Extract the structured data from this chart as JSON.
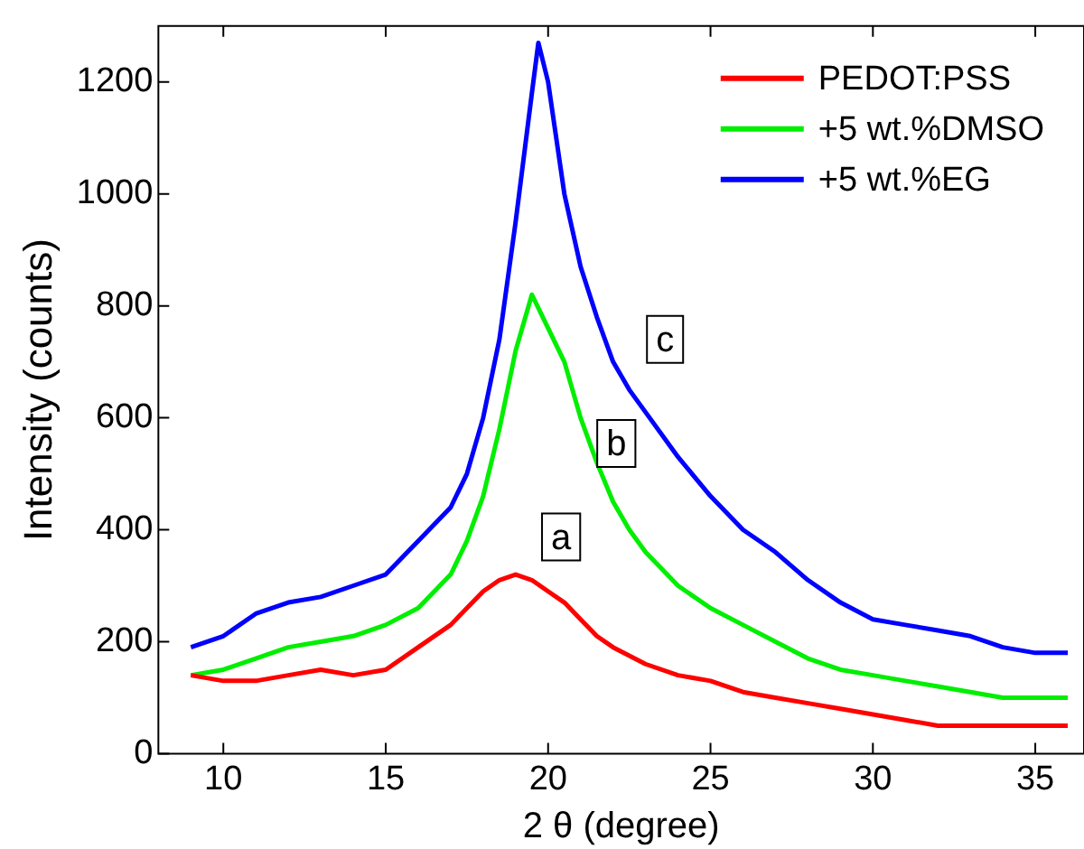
{
  "chart_data": {
    "type": "line",
    "xlabel": "2 θ (degree)",
    "ylabel": "Intensity (counts)",
    "xlim": [
      8,
      36.5
    ],
    "xticks": [
      10,
      15,
      20,
      25,
      30,
      35
    ],
    "ylim": [
      0,
      1300
    ],
    "yticks": [
      0,
      200,
      400,
      600,
      800,
      1000,
      1200
    ],
    "grid": false,
    "legend": "top right",
    "marker": "none",
    "line_style": "solid",
    "series": [
      {
        "name": "PEDOT:PSS",
        "color": "#ff0000",
        "x": [
          9,
          10,
          11,
          12,
          13,
          14,
          15,
          16,
          17,
          17.5,
          18,
          18.5,
          19,
          19.5,
          20,
          20.5,
          21,
          21.5,
          22,
          23,
          24,
          25,
          26,
          27,
          28,
          29,
          30,
          31,
          32,
          33,
          34,
          35,
          36
        ],
        "values": [
          140,
          130,
          130,
          140,
          150,
          140,
          150,
          190,
          230,
          260,
          290,
          310,
          320,
          310,
          290,
          270,
          240,
          210,
          190,
          160,
          140,
          130,
          110,
          100,
          90,
          80,
          70,
          60,
          50,
          50,
          50,
          50,
          50
        ]
      },
      {
        "name": "+5 wt.%DMSO",
        "color": "#00ee00",
        "x": [
          9,
          10,
          11,
          12,
          13,
          14,
          15,
          16,
          17,
          17.5,
          18,
          18.5,
          19,
          19.5,
          20,
          20.5,
          21,
          21.5,
          22,
          22.5,
          23,
          24,
          25,
          26,
          27,
          28,
          29,
          30,
          31,
          32,
          33,
          34,
          35,
          36
        ],
        "values": [
          140,
          150,
          170,
          190,
          200,
          210,
          230,
          260,
          320,
          380,
          460,
          580,
          720,
          820,
          760,
          700,
          600,
          520,
          450,
          400,
          360,
          300,
          260,
          230,
          200,
          170,
          150,
          140,
          130,
          120,
          110,
          100,
          100,
          100
        ]
      },
      {
        "name": "+5 wt.%EG",
        "color": "#0000ff",
        "x": [
          9,
          10,
          11,
          12,
          13,
          14,
          15,
          16,
          17,
          17.5,
          18,
          18.5,
          19,
          19.5,
          19.7,
          20,
          20.5,
          21,
          21.5,
          22,
          22.5,
          23,
          24,
          25,
          26,
          27,
          28,
          29,
          30,
          31,
          32,
          33,
          34,
          35,
          36
        ],
        "values": [
          190,
          210,
          250,
          270,
          280,
          300,
          320,
          380,
          440,
          500,
          600,
          740,
          950,
          1180,
          1270,
          1200,
          1000,
          870,
          780,
          700,
          650,
          610,
          530,
          460,
          400,
          360,
          310,
          270,
          240,
          230,
          220,
          210,
          190,
          180,
          180
        ]
      }
    ],
    "annotations": [
      {
        "text": "a",
        "x": 20.4,
        "y": 387
      },
      {
        "text": "b",
        "x": 22.1,
        "y": 554
      },
      {
        "text": "c",
        "x": 23.6,
        "y": 740
      }
    ]
  }
}
